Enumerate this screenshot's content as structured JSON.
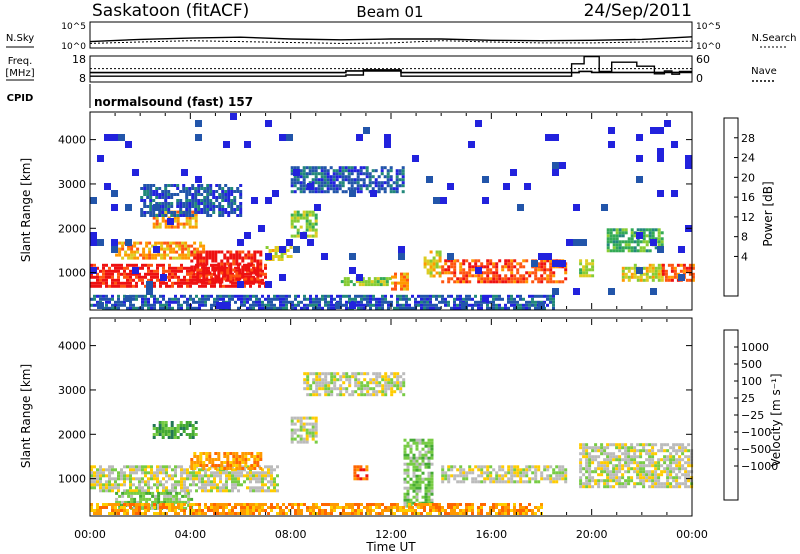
{
  "header": {
    "station": "Saskatoon (fitACF)",
    "beam": "Beam 01",
    "date": "24/Sep/2011",
    "mode": "normalsound (fast) 157"
  },
  "chart_data": [
    {
      "type": "line",
      "panel": "noise",
      "left_label": "N.Sky",
      "right_label": "N.Search",
      "left_ticks": [
        "10^5",
        "10^0"
      ],
      "right_ticks": [
        "10^5",
        "10^0"
      ],
      "x": [
        "00:00",
        "02:00",
        "04:00",
        "06:00",
        "08:00",
        "10:00",
        "12:00",
        "14:00",
        "16:00",
        "18:00",
        "20:00",
        "22:00",
        "24:00"
      ],
      "series": [
        {
          "values": [
            1.0,
            1.5,
            1.8,
            2.0,
            1.6,
            1.4,
            1.6,
            1.6,
            1.3,
            1.2,
            1.3,
            1.5,
            2.1
          ]
        },
        {
          "values": [
            0.6,
            0.9,
            1.2,
            1.0,
            0.8,
            0.6,
            0.7,
            1.2,
            0.9,
            0.7,
            0.7,
            0.9,
            1.1
          ]
        }
      ],
      "ylim": [
        0,
        5
      ]
    },
    {
      "type": "line",
      "panel": "frequency",
      "left_label_lines": [
        "Freq.",
        "[MHz]"
      ],
      "left_ticks": [
        "18",
        "8"
      ],
      "right_label": "Nave",
      "right_ticks": [
        "60",
        "0"
      ],
      "freq_series": {
        "x": [
          0,
          10.2,
          10.2,
          12.4,
          12.4,
          19.5,
          19.5,
          20.0,
          20.0,
          24.0
        ],
        "values": [
          11.5,
          11.5,
          12.2,
          12.2,
          11.5,
          11.5,
          12.0,
          12.0,
          11.6,
          11.6
        ]
      },
      "nave_series": {
        "x": [
          0,
          10.2,
          10.2,
          10.9,
          10.9,
          12.4,
          12.4,
          13.0,
          13.0,
          19.2,
          19.2,
          19.7,
          19.7,
          20.3,
          20.3,
          20.8,
          20.8,
          21.8,
          21.8,
          22.5,
          22.5,
          22.9,
          22.9,
          23.2,
          23.2,
          23.5,
          23.5,
          24.0
        ],
        "values": [
          12,
          12,
          15,
          15,
          28,
          28,
          12,
          12,
          12,
          12,
          43,
          43,
          61,
          61,
          24,
          24,
          47,
          47,
          37,
          37,
          18,
          18,
          25,
          25,
          17,
          17,
          24,
          24
        ]
      },
      "reference_line": 31,
      "freq_ylim": [
        8,
        18
      ],
      "nave_ylim": [
        0,
        60
      ],
      "cpid_label": "CPID"
    },
    {
      "type": "heatmap",
      "panel": "power",
      "ylabel": "Slant Range [km]",
      "y_ticks": [
        1000,
        2000,
        3000,
        4000
      ],
      "ylim": [
        180,
        4600
      ],
      "xlim": [
        0,
        24
      ],
      "colorbar": {
        "label": "Power [dB]",
        "ticks": [
          "28",
          "24",
          "20",
          "16",
          "12",
          "8",
          "4"
        ],
        "colors": [
          "#2222dd",
          "#2255aa",
          "#22887a",
          "#33aa55",
          "#88cc33",
          "#ddcc22",
          "#ff9900",
          "#ff5511",
          "#ee1111"
        ]
      },
      "regions": [
        {
          "x": [
            0.0,
            7.0
          ],
          "range": [
            700,
            1200
          ],
          "level": 8
        },
        {
          "x": [
            1.0,
            4.5
          ],
          "range": [
            1300,
            1700
          ],
          "level": 6
        },
        {
          "x": [
            2.5,
            4.2
          ],
          "range": [
            2000,
            2400
          ],
          "level": 6
        },
        {
          "x": [
            4.0,
            6.8
          ],
          "range": [
            800,
            1500
          ],
          "level": 8
        },
        {
          "x": [
            7.0,
            8.0
          ],
          "range": [
            1300,
            1600
          ],
          "level": 5
        },
        {
          "x": [
            8.0,
            9.0
          ],
          "range": [
            1800,
            2400
          ],
          "level": 4
        },
        {
          "x": [
            10.0,
            12.0
          ],
          "range": [
            700,
            900
          ],
          "level": 4
        },
        {
          "x": [
            12.0,
            12.6
          ],
          "range": [
            600,
            1000
          ],
          "level": 6
        },
        {
          "x": [
            13.3,
            14.0
          ],
          "range": [
            900,
            1500
          ],
          "level": 5
        },
        {
          "x": [
            14.0,
            19.0
          ],
          "range": [
            800,
            1300
          ],
          "level": 7
        },
        {
          "x": [
            19.5,
            20.0
          ],
          "range": [
            900,
            1300
          ],
          "level": 4
        },
        {
          "x": [
            20.6,
            22.8
          ],
          "range": [
            1500,
            2000
          ],
          "level": 3
        },
        {
          "x": [
            21.2,
            22.8
          ],
          "range": [
            800,
            1200
          ],
          "level": 5
        },
        {
          "x": [
            22.8,
            24.0
          ],
          "range": [
            800,
            1200
          ],
          "level": 7
        },
        {
          "x": [
            0.0,
            18.5
          ],
          "range": [
            200,
            500
          ],
          "level": 1
        },
        {
          "x": [
            2.0,
            6.0
          ],
          "range": [
            2300,
            3000
          ],
          "level": 1
        },
        {
          "x": [
            8.0,
            12.5
          ],
          "range": [
            2800,
            3400
          ],
          "level": 1
        },
        {
          "x": [
            0.0,
            24.0
          ],
          "range": [
            180,
            4600
          ],
          "level": 0
        }
      ]
    },
    {
      "type": "heatmap",
      "panel": "velocity",
      "xlabel": "Time UT",
      "ylabel": "Slant Range [km]",
      "x_ticks": [
        "00:00",
        "04:00",
        "08:00",
        "12:00",
        "16:00",
        "20:00",
        "00:00"
      ],
      "y_ticks": [
        1000,
        2000,
        3000,
        4000
      ],
      "ylim": [
        180,
        4600
      ],
      "xlim": [
        0,
        24
      ],
      "colorbar": {
        "label": "Velocity [m s⁻¹]",
        "ticks": [
          "1000",
          "500",
          "100",
          "25",
          "−25",
          "−100",
          "−500",
          "−1000"
        ],
        "colors": [
          "#2233cc",
          "#2266aa",
          "#227755",
          "#44aa33",
          "#77cc44",
          "#bbbbbb",
          "#ffcc00",
          "#ff9900",
          "#ff6600",
          "#ee1111"
        ]
      },
      "regions": [
        {
          "x": [
            0.0,
            7.5
          ],
          "range": [
            700,
            1300
          ],
          "level": 5
        },
        {
          "x": [
            4.0,
            6.8
          ],
          "range": [
            1200,
            1600
          ],
          "level": 7
        },
        {
          "x": [
            2.5,
            4.2
          ],
          "range": [
            1900,
            2300
          ],
          "level": 3
        },
        {
          "x": [
            1.0,
            4.0
          ],
          "range": [
            300,
            700
          ],
          "level": 4
        },
        {
          "x": [
            8.0,
            9.0
          ],
          "range": [
            1800,
            2400
          ],
          "level": 5
        },
        {
          "x": [
            10.5,
            11.0
          ],
          "range": [
            1000,
            1300
          ],
          "level": 8
        },
        {
          "x": [
            12.5,
            13.6
          ],
          "range": [
            400,
            1900
          ],
          "level": 4
        },
        {
          "x": [
            14.0,
            19.0
          ],
          "range": [
            900,
            1300
          ],
          "level": 5
        },
        {
          "x": [
            19.5,
            24.0
          ],
          "range": [
            800,
            1800
          ],
          "level": 5
        },
        {
          "x": [
            0.0,
            18.0
          ],
          "range": [
            200,
            450
          ],
          "level": 7
        },
        {
          "x": [
            8.5,
            12.5
          ],
          "range": [
            2900,
            3400
          ],
          "level": 5
        }
      ]
    }
  ]
}
